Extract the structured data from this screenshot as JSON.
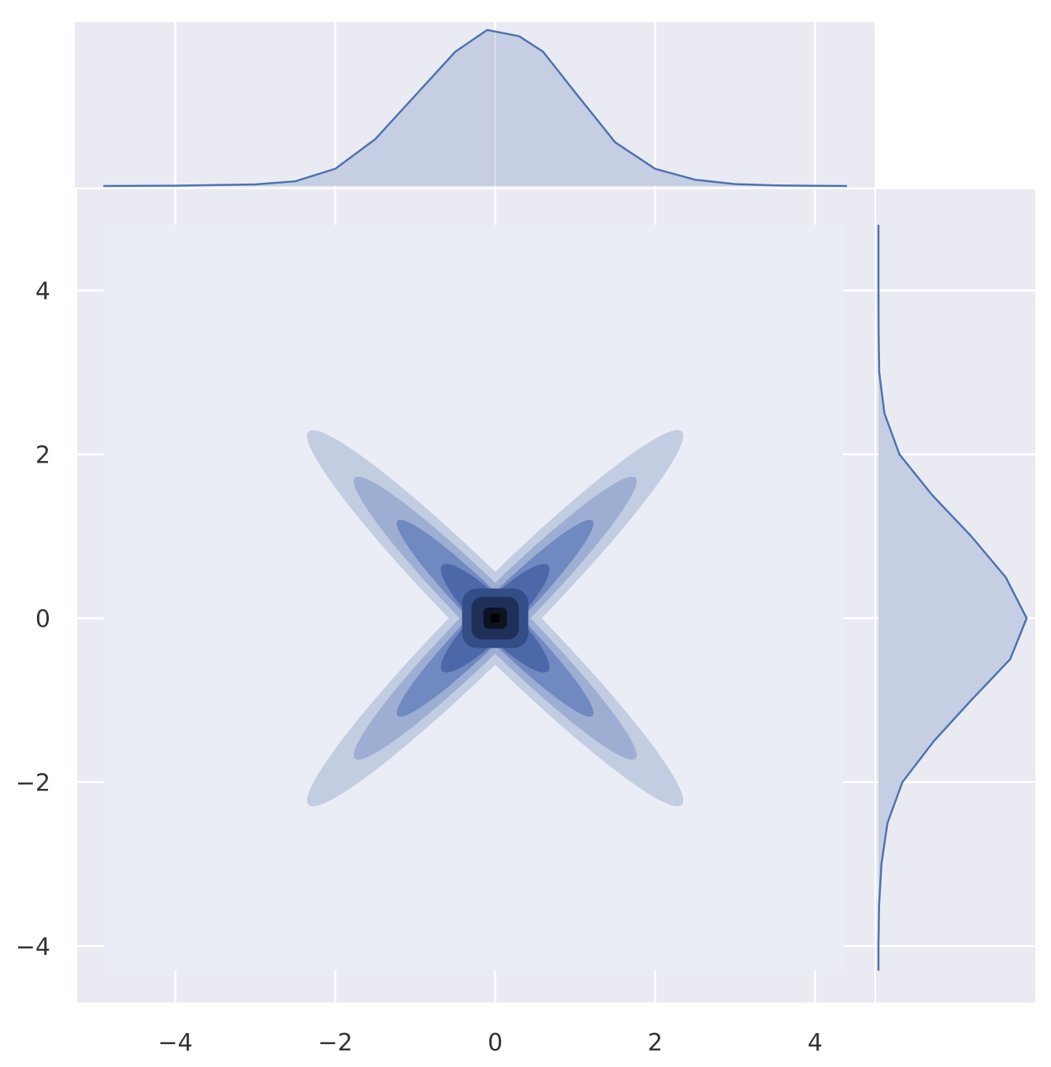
{
  "chart_data": {
    "type": "jointplot-kde",
    "title": "",
    "xlabel": "",
    "ylabel": "",
    "grid": true,
    "colors": {
      "panel_bg": "#eaeaf2",
      "grid": "#ffffff",
      "line": "#4c72b0",
      "fill": "#c3cce0",
      "contour_levels": [
        "#eaedf5",
        "#c3cde2",
        "#9eaed3",
        "#7089c0",
        "#4d68a8",
        "#334d86",
        "#1f2f58",
        "#0d1323"
      ]
    },
    "joint": {
      "kind": "kde-filled",
      "xlim": [
        -5.0,
        5.0
      ],
      "ylim": [
        -5.0,
        5.0
      ],
      "shape": "x-cross",
      "peak": [
        0,
        0
      ],
      "arm_extent": 1.7
    },
    "x_axis": {
      "ticks": [
        -4,
        -2,
        0,
        2,
        4
      ],
      "tick_labels": [
        "−4",
        "−2",
        "0",
        "2",
        "4"
      ]
    },
    "y_axis": {
      "ticks": [
        -4,
        -2,
        0,
        2,
        4
      ],
      "tick_labels": [
        "−4",
        "−2",
        "0",
        "2",
        "4"
      ]
    },
    "marginal_x": {
      "kind": "kde",
      "x": [
        -4.9,
        -4.0,
        -3.0,
        -2.5,
        -2.0,
        -1.5,
        -1.0,
        -0.5,
        -0.1,
        0.0,
        0.3,
        0.6,
        1.0,
        1.5,
        2.0,
        2.5,
        3.0,
        3.5,
        4.0,
        4.4
      ],
      "density": [
        0.0,
        0.002,
        0.01,
        0.03,
        0.11,
        0.3,
        0.58,
        0.86,
        1.0,
        0.99,
        0.96,
        0.86,
        0.6,
        0.28,
        0.11,
        0.04,
        0.012,
        0.004,
        0.001,
        0.0
      ]
    },
    "marginal_y": {
      "kind": "kde",
      "y": [
        -4.3,
        -4.0,
        -3.5,
        -3.0,
        -2.5,
        -2.0,
        -1.5,
        -1.0,
        -0.5,
        0.0,
        0.5,
        1.0,
        1.5,
        2.0,
        2.5,
        3.0,
        3.5,
        4.0,
        4.8
      ],
      "density": [
        0.0,
        0.0,
        0.004,
        0.02,
        0.06,
        0.16,
        0.37,
        0.62,
        0.88,
        0.99,
        0.85,
        0.62,
        0.36,
        0.14,
        0.04,
        0.005,
        0.001,
        0.0,
        0.0
      ]
    }
  }
}
